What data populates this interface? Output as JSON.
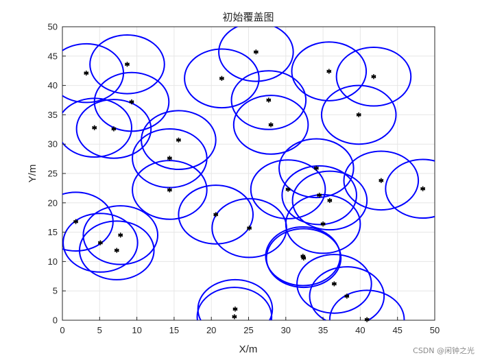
{
  "chart_data": {
    "type": "scatter",
    "title": "初始覆盖图",
    "xlabel": "X/m",
    "ylabel": "Y/m",
    "xlim": [
      0,
      50
    ],
    "ylim": [
      0,
      50
    ],
    "xticks": [
      0,
      5,
      10,
      15,
      20,
      25,
      30,
      35,
      40,
      45,
      50
    ],
    "yticks": [
      0,
      5,
      10,
      15,
      20,
      25,
      30,
      35,
      40,
      45,
      50
    ],
    "grid": true,
    "coverage_radius": 5,
    "marker": "*",
    "marker_color": "#000000",
    "circle_color": "#0000ff",
    "points": [
      {
        "x": 3.2,
        "y": 42.1
      },
      {
        "x": 8.7,
        "y": 43.6
      },
      {
        "x": 9.3,
        "y": 37.2
      },
      {
        "x": 4.3,
        "y": 32.8
      },
      {
        "x": 6.9,
        "y": 32.6
      },
      {
        "x": 15.6,
        "y": 30.7
      },
      {
        "x": 14.4,
        "y": 27.6
      },
      {
        "x": 14.4,
        "y": 22.2
      },
      {
        "x": 21.4,
        "y": 41.2
      },
      {
        "x": 26.0,
        "y": 45.7
      },
      {
        "x": 27.7,
        "y": 37.5
      },
      {
        "x": 28.0,
        "y": 33.3
      },
      {
        "x": 35.8,
        "y": 42.4
      },
      {
        "x": 41.8,
        "y": 41.5
      },
      {
        "x": 39.8,
        "y": 35.0
      },
      {
        "x": 1.8,
        "y": 16.8
      },
      {
        "x": 5.1,
        "y": 13.2
      },
      {
        "x": 7.8,
        "y": 14.5
      },
      {
        "x": 7.3,
        "y": 11.9
      },
      {
        "x": 20.6,
        "y": 18.0
      },
      {
        "x": 25.1,
        "y": 15.7
      },
      {
        "x": 30.3,
        "y": 22.3
      },
      {
        "x": 34.1,
        "y": 25.9
      },
      {
        "x": 34.5,
        "y": 21.3
      },
      {
        "x": 35.9,
        "y": 20.4
      },
      {
        "x": 35.0,
        "y": 16.4
      },
      {
        "x": 42.8,
        "y": 23.8
      },
      {
        "x": 48.4,
        "y": 22.4
      },
      {
        "x": 32.3,
        "y": 10.9
      },
      {
        "x": 32.4,
        "y": 10.6
      },
      {
        "x": 36.5,
        "y": 6.2
      },
      {
        "x": 38.2,
        "y": 4.1
      },
      {
        "x": 40.9,
        "y": 0.1
      },
      {
        "x": 23.2,
        "y": 1.9
      },
      {
        "x": 23.1,
        "y": 0.6
      }
    ]
  },
  "watermark": "CSDN @闲钟之光"
}
